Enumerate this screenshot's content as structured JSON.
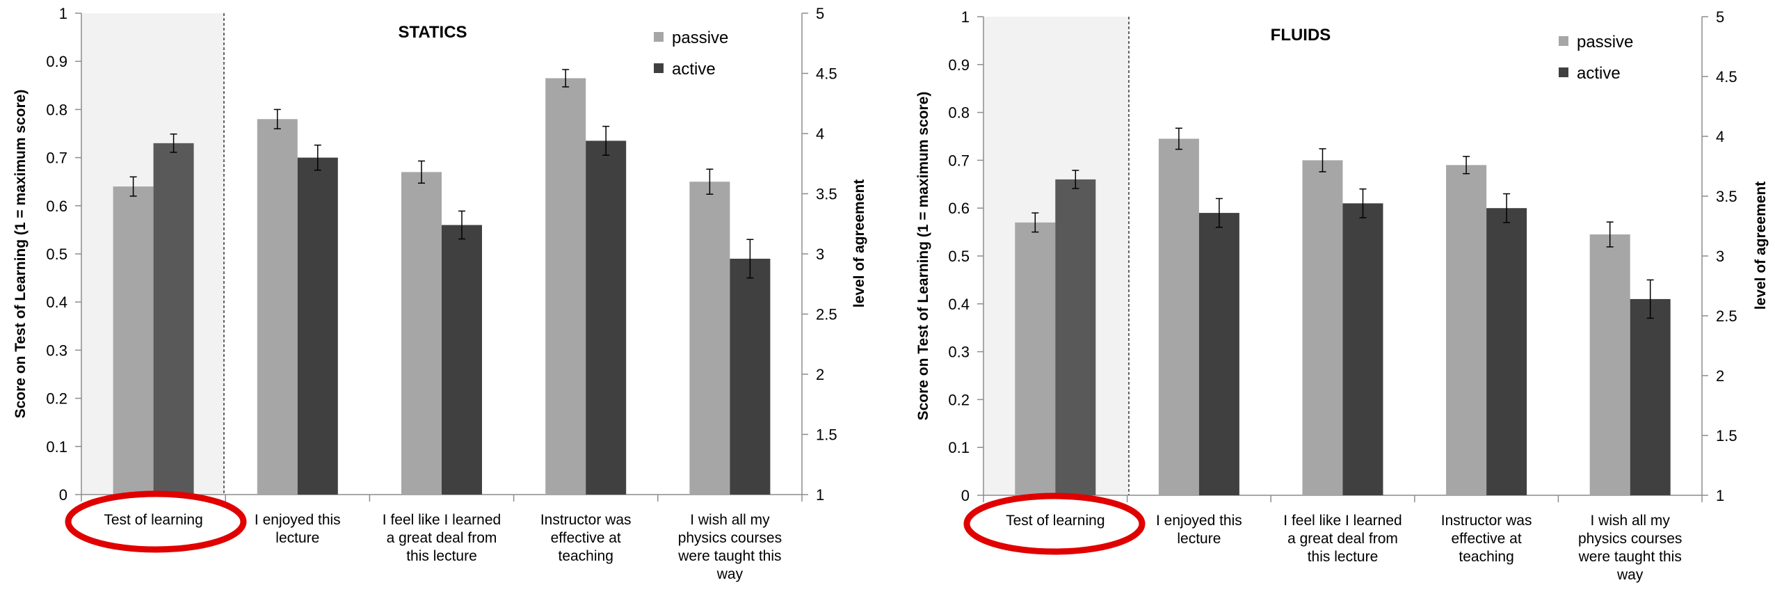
{
  "chart_data": [
    {
      "type": "bar",
      "title": "STATICS",
      "ylabel": "Score on Test of Learning  (1 = maximum score)",
      "y2label": "level of agreement",
      "ylim": [
        0,
        1
      ],
      "yticks": [
        "0",
        "0.1",
        "0.2",
        "0.3",
        "0.4",
        "0.5",
        "0.6",
        "0.7",
        "0.8",
        "0.9",
        "1"
      ],
      "y2lim": [
        1,
        5
      ],
      "y2ticks": [
        "1",
        "1.5",
        "2",
        "2.5",
        "3",
        "3.5",
        "4",
        "4.5",
        "5"
      ],
      "legend_position": "top-right",
      "categories": [
        [
          "Test of learning"
        ],
        [
          "I enjoyed this",
          "lecture"
        ],
        [
          "I feel like I learned",
          "a great deal from",
          "this lecture"
        ],
        [
          "Instructor was",
          "effective at",
          "teaching"
        ],
        [
          "I wish all my",
          "physics courses",
          "were taught this",
          "way"
        ]
      ],
      "series": [
        {
          "name": "passive",
          "color": "#a6a6a6",
          "values": [
            0.64,
            0.78,
            0.67,
            0.865,
            0.65
          ],
          "errors": [
            0.02,
            0.02,
            0.023,
            0.018,
            0.026
          ]
        },
        {
          "name": "active",
          "color": "#404040",
          "values": [
            0.73,
            0.7,
            0.56,
            0.735,
            0.49
          ],
          "errors": [
            0.019,
            0.026,
            0.029,
            0.03,
            0.04
          ]
        }
      ],
      "test_bar_colors": [
        "#a6a6a6",
        "#595959"
      ],
      "highlight_first_category": true
    },
    {
      "type": "bar",
      "title": "FLUIDS",
      "ylabel": "Score on Test of Learning   (1 = maximum score)",
      "y2label": "level of agreement",
      "ylim": [
        0,
        1
      ],
      "yticks": [
        "0",
        "0.1",
        "0.2",
        "0.3",
        "0.4",
        "0.5",
        "0.6",
        "0.7",
        "0.8",
        "0.9",
        "1"
      ],
      "y2lim": [
        1,
        5
      ],
      "y2ticks": [
        "1",
        "1.5",
        "2",
        "2.5",
        "3",
        "3.5",
        "4",
        "4.5",
        "5"
      ],
      "legend_position": "top-right",
      "categories": [
        [
          "Test of learning"
        ],
        [
          "I enjoyed this",
          "lecture"
        ],
        [
          "I feel like I learned",
          "a great deal from",
          "this lecture"
        ],
        [
          "Instructor was",
          "effective at",
          "teaching"
        ],
        [
          "I wish all my",
          "physics courses",
          "were taught this",
          "way"
        ]
      ],
      "series": [
        {
          "name": "passive",
          "color": "#a6a6a6",
          "values": [
            0.57,
            0.745,
            0.7,
            0.69,
            0.545
          ],
          "errors": [
            0.02,
            0.022,
            0.024,
            0.018,
            0.026
          ]
        },
        {
          "name": "active",
          "color": "#404040",
          "values": [
            0.66,
            0.59,
            0.61,
            0.6,
            0.41
          ],
          "errors": [
            0.019,
            0.03,
            0.03,
            0.03,
            0.04
          ]
        }
      ],
      "test_bar_colors": [
        "#a6a6a6",
        "#595959"
      ],
      "highlight_first_category": true
    }
  ],
  "annotation": {
    "circle_color": "#e00000"
  }
}
